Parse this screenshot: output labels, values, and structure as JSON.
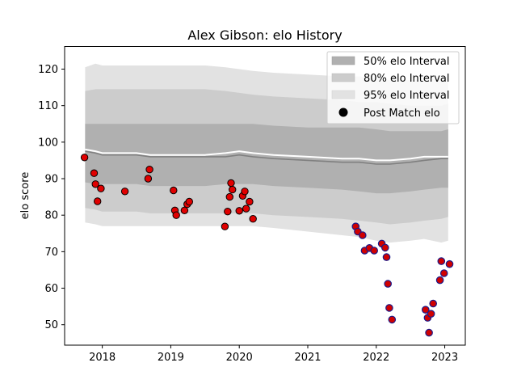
{
  "chart_data": {
    "type": "scatter",
    "title": "Alex Gibson: elo History",
    "xlabel": "",
    "ylabel": "elo score",
    "xlim": [
      2017.45,
      2023.3
    ],
    "ylim": [
      44.4,
      126.2
    ],
    "xticks": [
      2018,
      2019,
      2020,
      2021,
      2022,
      2023
    ],
    "xtick_labels": [
      "2018",
      "2019",
      "2020",
      "2021",
      "2022",
      "2023"
    ],
    "yticks": [
      50,
      60,
      70,
      80,
      90,
      100,
      110,
      120
    ],
    "ytick_labels": [
      "50",
      "60",
      "70",
      "80",
      "90",
      "100",
      "110",
      "120"
    ],
    "legend_position": "top-right",
    "legend": [
      "50% elo Interval",
      "80% elo Interval",
      "95% elo Interval",
      "Post Match elo"
    ],
    "colors": {
      "band50": "#b0b0b0",
      "band80": "#cccccc",
      "band95": "#e2e2e2",
      "mean_line": "#ffffff",
      "median_line": "#808080",
      "point_fill_early": "#e00000",
      "point_edge_early": "#000000",
      "point_fill_late": "#d00000",
      "point_edge_late": "#1a1a8a"
    },
    "interval_bands": {
      "x": [
        2017.75,
        2017.9,
        2018.0,
        2018.5,
        2018.7,
        2019.0,
        2019.5,
        2019.8,
        2020.0,
        2020.2,
        2020.5,
        2021.0,
        2021.5,
        2021.75,
        2022.0,
        2022.2,
        2022.5,
        2022.7,
        2022.95,
        2023.05
      ],
      "p95_low": [
        78.0,
        77.5,
        77.0,
        77.0,
        77.0,
        77.0,
        77.0,
        77.0,
        77.0,
        77.0,
        76.5,
        75.5,
        74.5,
        74.0,
        73.0,
        72.5,
        73.0,
        73.5,
        72.5,
        73.0
      ],
      "p80_low": [
        82.0,
        81.5,
        81.0,
        81.0,
        80.5,
        80.5,
        80.5,
        80.5,
        80.5,
        80.5,
        80.0,
        79.5,
        79.0,
        78.5,
        78.0,
        77.5,
        78.0,
        78.5,
        79.0,
        79.5
      ],
      "p50_low": [
        89.0,
        88.5,
        88.5,
        88.5,
        88.0,
        88.0,
        88.0,
        88.5,
        88.5,
        88.5,
        88.0,
        87.5,
        87.0,
        86.5,
        86.0,
        86.0,
        86.5,
        87.0,
        87.5,
        87.5
      ],
      "median": [
        97.5,
        97.0,
        96.5,
        96.5,
        96.0,
        96.0,
        96.0,
        96.0,
        96.5,
        96.0,
        95.5,
        95.0,
        94.5,
        94.5,
        94.0,
        94.0,
        94.5,
        95.0,
        95.5,
        95.5
      ],
      "mean": [
        98.0,
        97.5,
        97.0,
        97.0,
        96.5,
        96.5,
        96.5,
        97.0,
        97.5,
        97.0,
        96.5,
        96.0,
        95.5,
        95.5,
        95.0,
        95.0,
        95.5,
        96.0,
        96.0,
        96.0
      ],
      "p50_high": [
        105.0,
        105.0,
        105.0,
        105.0,
        105.0,
        105.0,
        105.0,
        105.0,
        105.0,
        105.0,
        104.5,
        104.0,
        104.0,
        104.0,
        103.5,
        103.0,
        103.0,
        103.0,
        103.0,
        103.5
      ],
      "p80_high": [
        114.0,
        114.5,
        114.5,
        114.5,
        114.5,
        114.5,
        114.5,
        114.0,
        113.5,
        113.0,
        112.5,
        112.0,
        111.5,
        111.0,
        111.0,
        110.5,
        110.0,
        110.0,
        110.0,
        110.5
      ],
      "p95_high": [
        120.5,
        121.5,
        121.0,
        121.0,
        121.0,
        121.0,
        121.0,
        120.5,
        120.0,
        119.5,
        119.0,
        118.5,
        118.0,
        118.0,
        117.5,
        117.0,
        117.0,
        117.0,
        117.5,
        118.0
      ]
    },
    "points_early": [
      [
        2017.74,
        95.8
      ],
      [
        2017.88,
        91.5
      ],
      [
        2017.9,
        88.5
      ],
      [
        2017.93,
        83.8
      ],
      [
        2017.98,
        87.3
      ],
      [
        2018.33,
        86.5
      ],
      [
        2018.67,
        90.0
      ],
      [
        2018.69,
        92.5
      ],
      [
        2019.04,
        86.8
      ],
      [
        2019.06,
        81.3
      ],
      [
        2019.08,
        80.0
      ],
      [
        2019.2,
        81.3
      ],
      [
        2019.24,
        83.0
      ],
      [
        2019.27,
        83.7
      ],
      [
        2019.79,
        76.9
      ],
      [
        2019.83,
        81.0
      ],
      [
        2019.86,
        85.0
      ],
      [
        2019.88,
        88.8
      ],
      [
        2019.9,
        87.0
      ],
      [
        2020.0,
        81.2
      ],
      [
        2020.05,
        85.3
      ],
      [
        2020.08,
        86.5
      ],
      [
        2020.1,
        81.8
      ],
      [
        2020.15,
        83.7
      ],
      [
        2020.2,
        79.0
      ]
    ],
    "points_late": [
      [
        2021.7,
        76.9
      ],
      [
        2021.73,
        75.5
      ],
      [
        2021.8,
        74.5
      ],
      [
        2021.83,
        70.3
      ],
      [
        2021.9,
        71.0
      ],
      [
        2021.97,
        70.3
      ],
      [
        2022.08,
        72.2
      ],
      [
        2022.13,
        71.1
      ],
      [
        2022.15,
        68.5
      ],
      [
        2022.17,
        61.2
      ],
      [
        2022.19,
        54.6
      ],
      [
        2022.23,
        51.4
      ],
      [
        2022.72,
        54.1
      ],
      [
        2022.75,
        51.9
      ],
      [
        2022.77,
        47.8
      ],
      [
        2022.8,
        53.0
      ],
      [
        2022.83,
        55.8
      ],
      [
        2022.93,
        62.2
      ],
      [
        2022.95,
        67.4
      ],
      [
        2022.99,
        64.1
      ],
      [
        2023.07,
        66.6
      ]
    ]
  }
}
